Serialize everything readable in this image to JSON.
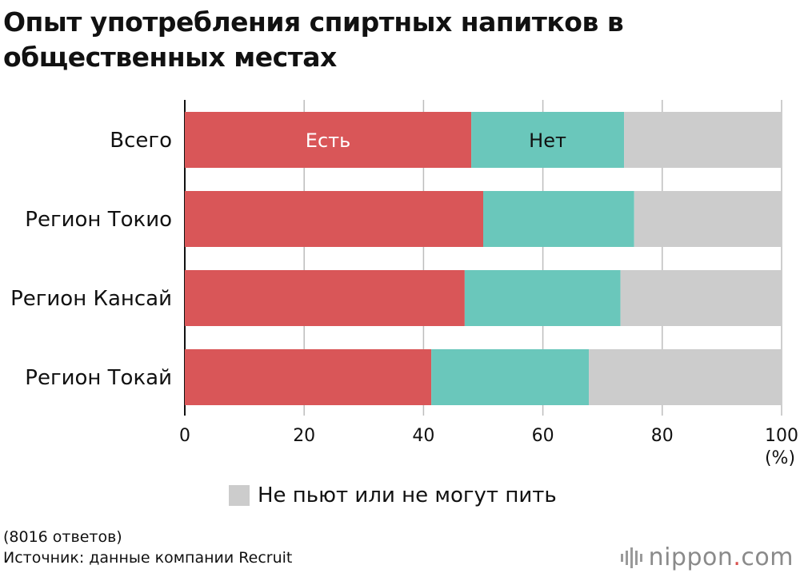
{
  "chart_data": {
    "type": "bar",
    "orientation": "horizontal",
    "stacked": true,
    "title": "Опыт употребления спиртных напитков в общественных местах",
    "categories": [
      "Всего",
      "Регион Токио",
      "Регион Кансай",
      "Регион Токай"
    ],
    "series": [
      {
        "name": "Есть",
        "color": "#d95658",
        "values": [
          48.0,
          50.0,
          46.9,
          41.3
        ]
      },
      {
        "name": "Нет",
        "color": "#6ac7bb",
        "values": [
          25.6,
          25.3,
          26.1,
          26.4
        ]
      },
      {
        "name": "Не пьют или не могут пить",
        "color": "#cccccc",
        "values": [
          26.4,
          24.7,
          27.0,
          32.3
        ]
      }
    ],
    "xlim": [
      0,
      100
    ],
    "xticks": [
      0,
      20,
      40,
      60,
      80,
      100
    ],
    "xunit": "(%)",
    "inbar_labels": [
      {
        "series": 0,
        "category": 0,
        "text": "Есть",
        "color": "#ffffff"
      },
      {
        "series": 1,
        "category": 0,
        "text": "Нет",
        "color": "#111111"
      }
    ],
    "legend": {
      "series": 2,
      "placement": "bottom"
    },
    "grid": true
  },
  "footer": {
    "note": "(8016 ответов)",
    "source": "Источник: данные компании Recruit"
  },
  "logo": {
    "name": "nippon",
    "dot": ".",
    "suffix": "com"
  }
}
